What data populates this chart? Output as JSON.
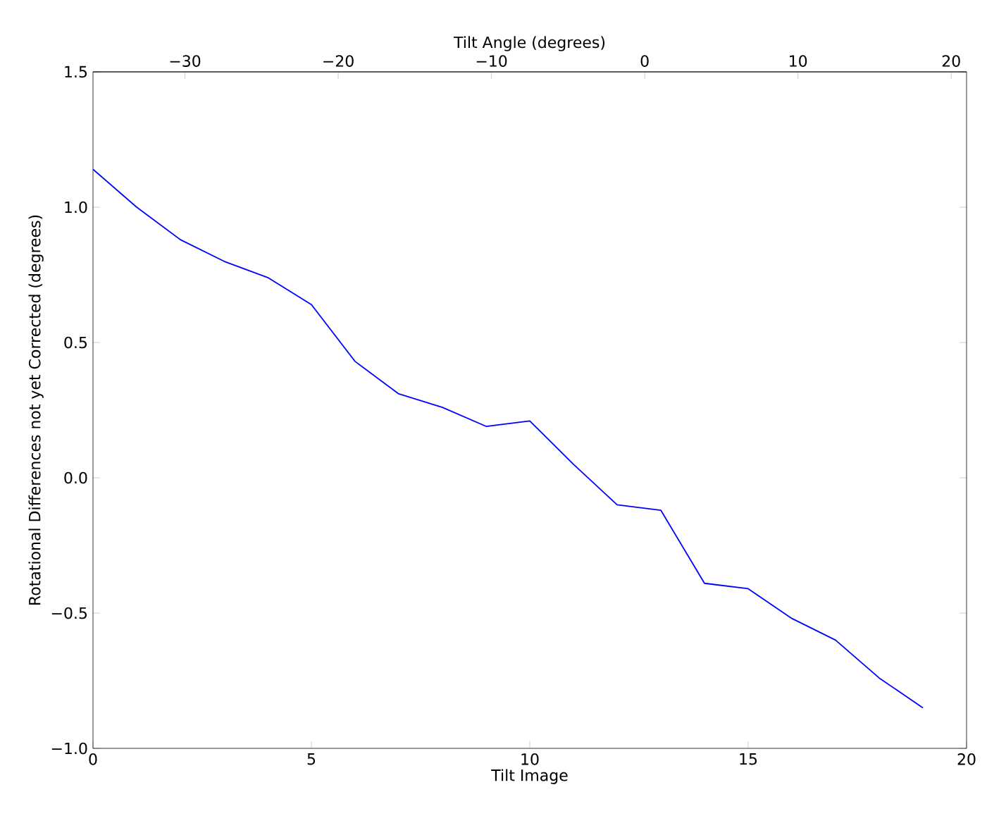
{
  "chart_data": {
    "type": "line",
    "xlabel": "Tilt Image",
    "ylabel": "Rotational Differences not yet Corrected (degrees)",
    "x2label": "Tilt Angle (degrees)",
    "x": [
      0,
      1,
      2,
      3,
      4,
      5,
      6,
      7,
      8,
      9,
      10,
      11,
      12,
      13,
      14,
      15,
      16,
      17,
      18,
      19
    ],
    "series": [
      {
        "color": "#0000ff",
        "values": [
          1.14,
          1.0,
          0.88,
          0.8,
          0.74,
          0.64,
          0.43,
          0.31,
          0.26,
          0.19,
          0.21,
          0.05,
          -0.1,
          -0.12,
          -0.39,
          -0.41,
          -0.52,
          -0.6,
          -0.74,
          -0.85
        ]
      }
    ],
    "xlim": [
      0,
      20
    ],
    "xticks": [
      0,
      5,
      10,
      15,
      20
    ],
    "ylim": [
      -1.0,
      1.5
    ],
    "yticks": [
      {
        "value": -1.0,
        "label": "−1.0"
      },
      {
        "value": -0.5,
        "label": "−0.5"
      },
      {
        "value": 0.0,
        "label": "0.0"
      },
      {
        "value": 0.5,
        "label": "0.5"
      },
      {
        "value": 1.0,
        "label": "1.0"
      },
      {
        "value": 1.5,
        "label": "1.5"
      }
    ],
    "x2lim": [
      -36,
      21
    ],
    "x2ticks": [
      {
        "value": -30,
        "label": "−30"
      },
      {
        "value": -20,
        "label": "−20"
      },
      {
        "value": -10,
        "label": "−10"
      },
      0,
      10,
      20
    ],
    "grid": false,
    "marker": "none",
    "line_style": "solid"
  }
}
